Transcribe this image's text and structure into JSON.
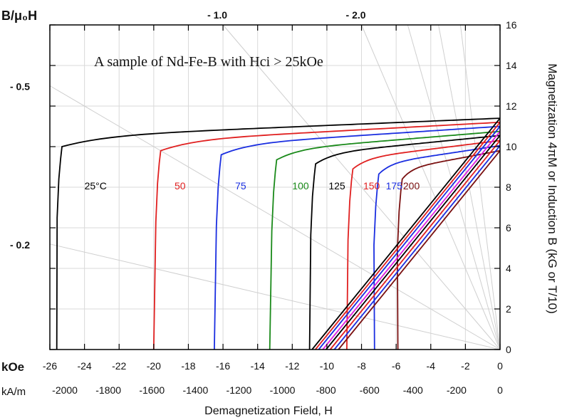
{
  "chart_data": {
    "type": "line",
    "annotation": "A sample of Nd-Fe-B with Hci > 25kOe",
    "axis_left_label": "B/μ₀H",
    "axis_right_label": "Magnetization 4πM or Induction B (kG or T/10)",
    "axis_bottom_unit": "kOe",
    "axis_bottom2_unit": "kA/m",
    "xlabel": "Demagnetization Field, H",
    "xlim": [
      -26,
      0
    ],
    "ylim": [
      0,
      16
    ],
    "x_ticks": [
      "-26",
      "-24",
      "-22",
      "-20",
      "-18",
      "-16",
      "-14",
      "-12",
      "-10",
      "-8",
      "-6",
      "-4",
      "-2",
      "0"
    ],
    "x2_ticks": [
      "-2000",
      "-1800",
      "-1600",
      "-1400",
      "-1200",
      "-1000",
      "-800",
      "-600",
      "-400",
      "-200",
      "0"
    ],
    "y_ticks": [
      "0",
      "2",
      "4",
      "6",
      "8",
      "10",
      "12",
      "14",
      "16"
    ],
    "load_lines": [
      {
        "label": "- 0.5",
        "slope": 0.5,
        "side": "left"
      },
      {
        "label": "- 0.2",
        "slope": 0.2,
        "side": "left"
      },
      {
        "label": "- 1.0",
        "slope": 1.0,
        "side": "top"
      },
      {
        "label": "- 2.0",
        "slope": 2.0,
        "side": "top"
      }
    ],
    "extra_load_slopes": [
      3.0,
      4.5,
      7.0
    ],
    "series": [
      {
        "name": "25°C",
        "color": "#000000",
        "Hc": -25.3,
        "Hci": -25.6,
        "Br": 11.4
      },
      {
        "name": "50",
        "color": "#e02020",
        "Hc": -19.6,
        "Hci": -20.0,
        "Br": 11.2
      },
      {
        "name": "75",
        "color": "#1a2ee0",
        "Hc": -16.1,
        "Hci": -16.5,
        "Br": 11.0
      },
      {
        "name": "100",
        "color": "#1a8a1a",
        "Hc": -12.9,
        "Hci": -13.3,
        "Br": 10.75
      },
      {
        "name": "125",
        "color": "#000000",
        "Hc": -10.65,
        "Hci": -11.0,
        "Br": 10.55
      },
      {
        "name": "150",
        "color": "#e02020",
        "Hc": -8.5,
        "Hci": -8.85,
        "Br": 10.3
      },
      {
        "name": "175",
        "color": "#1a2ee0",
        "Hc": -7.0,
        "Hci": -7.25,
        "Br": 10.05
      },
      {
        "name": "200",
        "color": "#7a1010",
        "Hc": -5.65,
        "Hci": -5.9,
        "Br": 9.8
      }
    ],
    "induction_lines": [
      {
        "color": "#000000",
        "Br": 11.4
      },
      {
        "color": "#e02020",
        "Br": 11.2
      },
      {
        "color": "#1a2ee0",
        "Br": 11.0
      },
      {
        "color": "#e020e0",
        "Br": 10.75
      },
      {
        "color": "#000000",
        "Br": 10.55
      },
      {
        "color": "#e02020",
        "Br": 10.3
      },
      {
        "color": "#1a2ee0",
        "Br": 10.05
      },
      {
        "color": "#7a1010",
        "Br": 9.8
      }
    ],
    "curve_labels": [
      {
        "text": "25°C",
        "color": "#000000",
        "x": -24.0,
        "y": 7.9
      },
      {
        "text": "50",
        "color": "#e02020",
        "x": -18.8,
        "y": 7.9
      },
      {
        "text": "75",
        "color": "#1a2ee0",
        "x": -15.3,
        "y": 7.9
      },
      {
        "text": "100",
        "color": "#1a8a1a",
        "x": -12.0,
        "y": 7.9
      },
      {
        "text": "125",
        "color": "#000000",
        "x": -9.9,
        "y": 7.9
      },
      {
        "text": "150",
        "color": "#e02020",
        "x": -7.9,
        "y": 7.9
      },
      {
        "text": "175",
        "color": "#1a2ee0",
        "x": -6.6,
        "y": 7.9
      },
      {
        "text": "200",
        "color": "#7a1010",
        "x": -5.6,
        "y": 7.9
      }
    ],
    "grid": true
  }
}
